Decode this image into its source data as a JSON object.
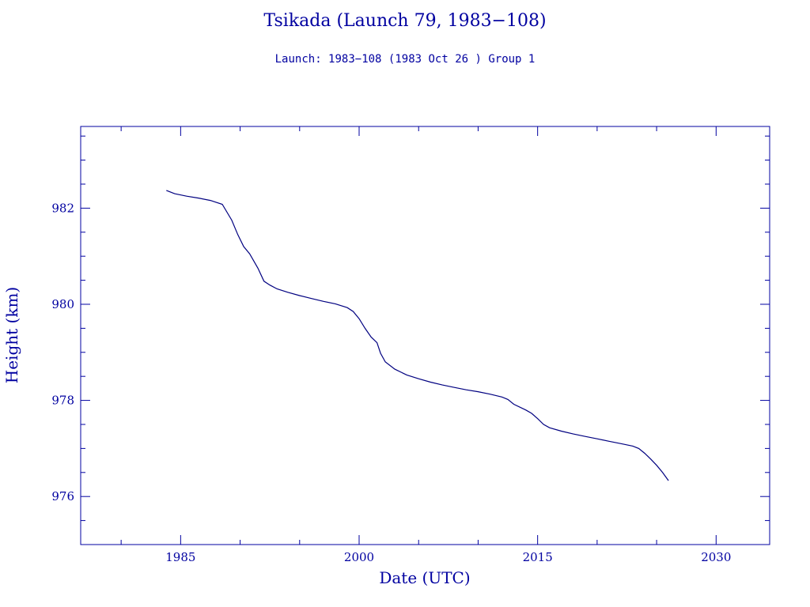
{
  "title": "Tsikada (Launch 79, 1983−108)",
  "subtitle": "Launch: 1983−108  (1983 Oct 26 )  Group 1",
  "chart_data": {
    "type": "line",
    "title": "Tsikada (Launch 79, 1983−108)",
    "subtitle": "Launch: 1983−108  (1983 Oct 26 )  Group 1",
    "xlabel": "Date (UTC)",
    "ylabel": "Height (km)",
    "xlim": [
      1976.6,
      2034.5
    ],
    "ylim": [
      975.0,
      983.7
    ],
    "x_ticks": [
      1985,
      2000,
      2015,
      2030
    ],
    "y_ticks": [
      976,
      978,
      980,
      982
    ],
    "grid": false,
    "color": "#000080",
    "series": [
      {
        "x": [
          1983.8,
          1984.5,
          1985.5,
          1986.5,
          1987.5,
          1988.5,
          1989.3,
          1989.8,
          1990.3,
          1990.8,
          1991.5,
          1992.0,
          1992.5,
          1993.1,
          1994.0,
          1995.0,
          1996.0,
          1997.0,
          1998.0,
          1999.0,
          1999.5,
          2000.0,
          2000.5,
          2001.0,
          2001.5,
          2001.8,
          2002.2,
          2003.0,
          2004.0,
          2005.0,
          2006.0,
          2007.0,
          2008.0,
          2009.0,
          2010.0,
          2011.0,
          2012.0,
          2012.5,
          2013.0,
          2014.0,
          2014.5,
          2015.0,
          2015.5,
          2016.0,
          2017.0,
          2018.0,
          2019.0,
          2020.0,
          2021.0,
          2022.0,
          2023.0,
          2023.5,
          2024.0,
          2024.5,
          2025.0,
          2025.5,
          2026.0
        ],
        "y": [
          982.37,
          982.3,
          982.25,
          982.21,
          982.16,
          982.08,
          981.75,
          981.45,
          981.2,
          981.05,
          980.75,
          980.48,
          980.4,
          980.32,
          980.25,
          980.18,
          980.12,
          980.06,
          980.01,
          979.93,
          979.85,
          979.7,
          979.5,
          979.32,
          979.2,
          978.98,
          978.8,
          978.65,
          978.53,
          978.45,
          978.38,
          978.32,
          978.27,
          978.22,
          978.18,
          978.13,
          978.07,
          978.02,
          977.92,
          977.8,
          977.73,
          977.62,
          977.5,
          977.43,
          977.36,
          977.3,
          977.25,
          977.2,
          977.15,
          977.1,
          977.05,
          977.0,
          976.9,
          976.78,
          976.65,
          976.5,
          976.33
        ]
      }
    ]
  }
}
